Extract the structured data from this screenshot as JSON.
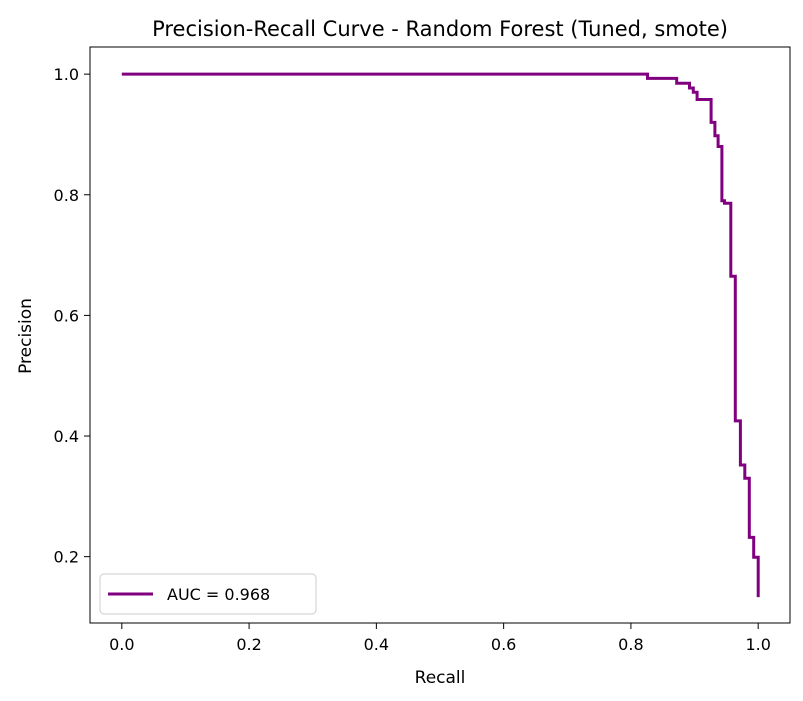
{
  "chart_data": {
    "type": "line",
    "title": "Precision-Recall Curve - Random Forest (Tuned, smote)",
    "xlabel": "Recall",
    "ylabel": "Precision",
    "xlim": [
      -0.05,
      1.05
    ],
    "ylim": [
      0.09,
      1.045
    ],
    "x_ticks": [
      0.0,
      0.2,
      0.4,
      0.6,
      0.8,
      1.0
    ],
    "x_tick_labels": [
      "0.0",
      "0.2",
      "0.4",
      "0.6",
      "0.8",
      "1.0"
    ],
    "y_ticks": [
      0.2,
      0.4,
      0.6,
      0.8,
      1.0
    ],
    "y_tick_labels": [
      "0.2",
      "0.4",
      "0.6",
      "0.8",
      "1.0"
    ],
    "grid": false,
    "legend_position": "lower-left",
    "series": [
      {
        "name": "AUC = 0.968",
        "color": "#800080",
        "step": true,
        "x": [
          0.0,
          0.826,
          0.826,
          0.872,
          0.872,
          0.892,
          0.892,
          0.898,
          0.898,
          0.904,
          0.904,
          0.926,
          0.926,
          0.932,
          0.932,
          0.937,
          0.937,
          0.943,
          0.943,
          0.947,
          0.947,
          0.957,
          0.957,
          0.964,
          0.964,
          0.972,
          0.972,
          0.979,
          0.979,
          0.986,
          0.986,
          0.993,
          0.993,
          1.0,
          1.0
        ],
        "y": [
          1.0,
          1.0,
          0.993,
          0.993,
          0.985,
          0.985,
          0.977,
          0.977,
          0.97,
          0.97,
          0.958,
          0.958,
          0.92,
          0.92,
          0.898,
          0.898,
          0.88,
          0.88,
          0.79,
          0.79,
          0.786,
          0.786,
          0.665,
          0.665,
          0.425,
          0.425,
          0.352,
          0.352,
          0.33,
          0.33,
          0.232,
          0.232,
          0.199,
          0.199,
          0.133
        ]
      }
    ]
  }
}
